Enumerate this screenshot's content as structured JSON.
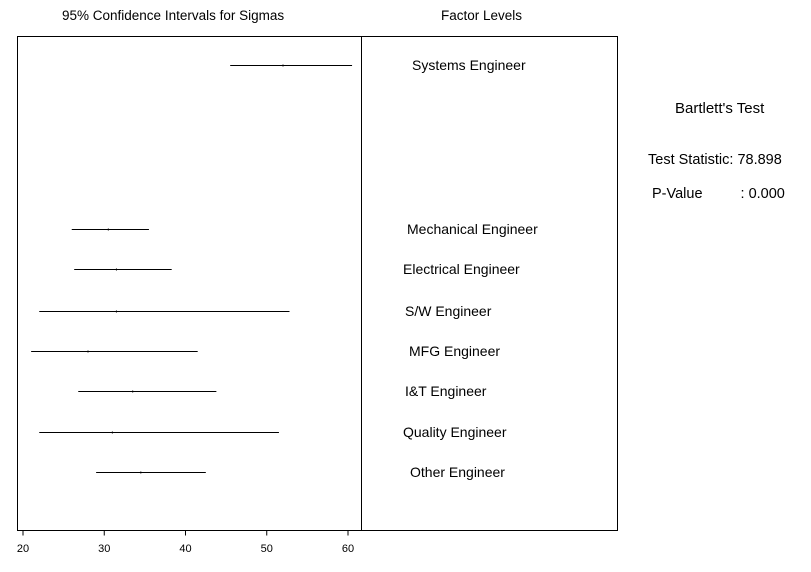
{
  "chart_data": {
    "type": "interval",
    "title": "95% Confidence Intervals for Sigmas",
    "factor_header": "Factor Levels",
    "x_ticks": [
      20,
      30,
      40,
      50,
      60
    ],
    "xlim": [
      20,
      61.5
    ],
    "intervals": [
      {
        "label": "Systems Engineer",
        "low": 45.5,
        "mid": 52.0,
        "high": 60.5
      },
      {
        "label": "Mechanical Engineer",
        "low": 26.0,
        "mid": 30.5,
        "high": 35.5
      },
      {
        "label": "Electrical Engineer",
        "low": 26.3,
        "mid": 31.5,
        "high": 38.3
      },
      {
        "label": "S/W Engineer",
        "low": 22.0,
        "mid": 31.5,
        "high": 52.8
      },
      {
        "label": "MFG Engineer",
        "low": 21.0,
        "mid": 28.0,
        "high": 41.5
      },
      {
        "label": "I&T Engineer",
        "low": 26.8,
        "mid": 33.5,
        "high": 43.8
      },
      {
        "label": "Quality Engineer",
        "low": 22.0,
        "mid": 31.0,
        "high": 51.5
      },
      {
        "label": "Other Engineer",
        "low": 29.0,
        "mid": 34.5,
        "high": 42.5
      }
    ]
  },
  "test": {
    "name": "Bartlett's Test",
    "statistic_label": "Test Statistic:",
    "statistic_value": "78.898",
    "pvalue_label": "P-Value",
    "pvalue_value": ": 0.000"
  }
}
